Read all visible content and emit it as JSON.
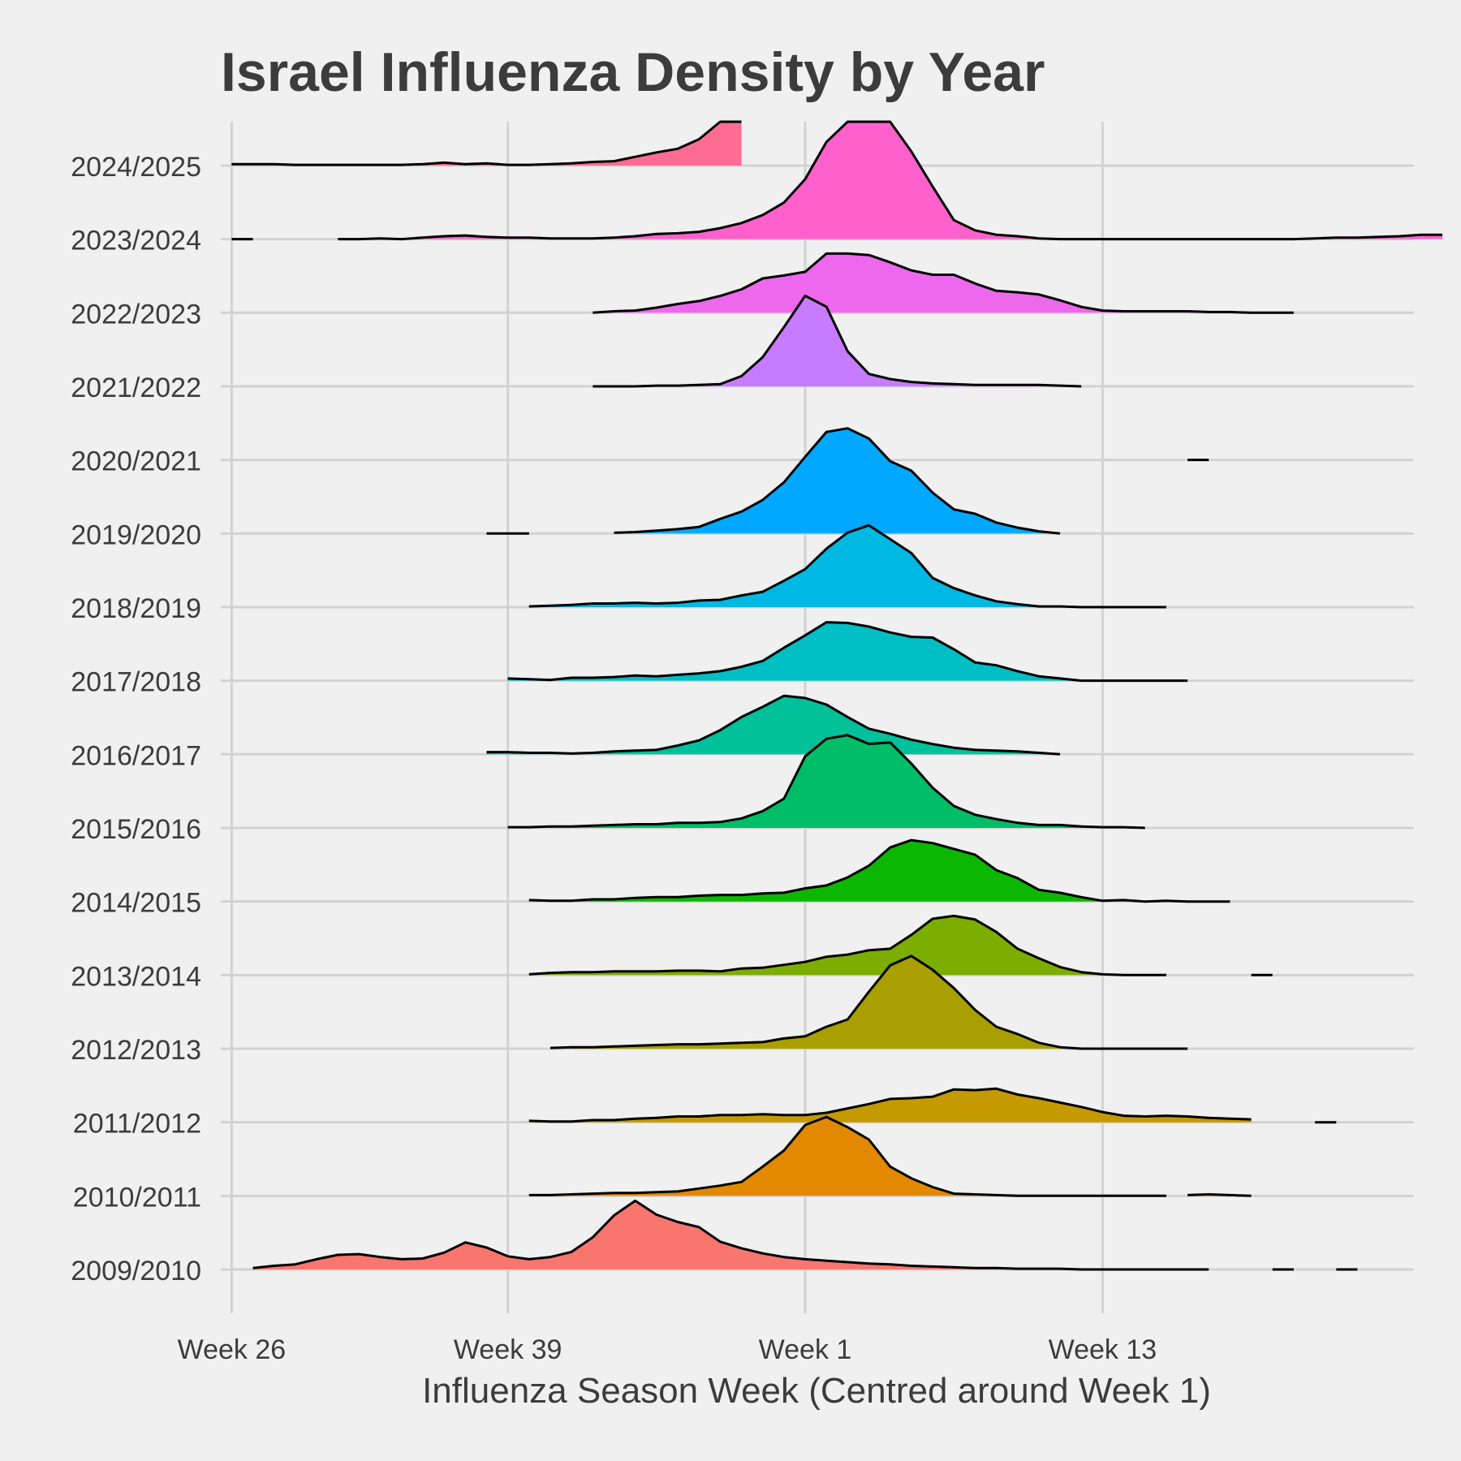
{
  "chart_data": {
    "type": "ridgeline",
    "title": "Israel Influenza Density by Year",
    "xlabel": "Influenza Season Week (Centred around Week 1)",
    "ylabel": "",
    "x_ticks": [
      {
        "value": -27,
        "label": "Week 26"
      },
      {
        "value": -14,
        "label": "Week 39"
      },
      {
        "value": 0,
        "label": "Week 1"
      },
      {
        "value": 14,
        "label": "Week 13"
      }
    ],
    "xlim": [
      -28.5,
      30.5
    ],
    "grid": true,
    "legend": "none",
    "y_categories": [
      "2009/2010",
      "2010/2011",
      "2011/2012",
      "2012/2013",
      "2013/2014",
      "2014/2015",
      "2015/2016",
      "2016/2017",
      "2017/2018",
      "2018/2019",
      "2019/2020",
      "2020/2021",
      "2021/2022",
      "2022/2023",
      "2023/2024",
      "2024/2025"
    ],
    "series": [
      {
        "name": "2009/2010",
        "color": "#F8766D",
        "segments": [
          {
            "start": -26,
            "values": [
              0.02,
              0.05,
              0.07,
              0.14,
              0.2,
              0.21,
              0.17,
              0.14,
              0.15,
              0.23,
              0.37,
              0.3,
              0.18,
              0.14,
              0.17,
              0.24,
              0.44,
              0.74,
              0.94,
              0.75,
              0.65,
              0.58,
              0.38,
              0.29,
              0.22,
              0.17,
              0.14,
              0.12,
              0.1,
              0.08,
              0.07,
              0.05,
              0.04,
              0.03,
              0.02,
              0.02,
              0.01,
              0.01,
              0.01,
              0.0,
              0.0,
              0.0,
              0.0,
              0.0,
              0.0,
              0.0
            ]
          },
          {
            "start": 22,
            "values": [
              0.0,
              0.0
            ]
          },
          {
            "start": 25,
            "values": [
              0.0,
              0.0
            ]
          }
        ]
      },
      {
        "name": "2010/2011",
        "color": "#E38900",
        "segments": [
          {
            "start": -13,
            "values": [
              0.01,
              0.01,
              0.02,
              0.03,
              0.04,
              0.04,
              0.05,
              0.06,
              0.1,
              0.14,
              0.19,
              0.4,
              0.62,
              0.97,
              1.08,
              0.94,
              0.77,
              0.4,
              0.24,
              0.12,
              0.03,
              0.02,
              0.01,
              0.0,
              0.0,
              0.0,
              0.0,
              0.0,
              0.0,
              0.0,
              0.0
            ]
          },
          {
            "start": 18,
            "values": [
              0.01,
              0.02,
              0.01,
              0.0
            ]
          }
        ]
      },
      {
        "name": "2011/2012",
        "color": "#C49A00",
        "segments": [
          {
            "start": -13,
            "values": [
              0.02,
              0.01,
              0.01,
              0.03,
              0.03,
              0.05,
              0.06,
              0.08,
              0.08,
              0.1,
              0.1,
              0.11,
              0.1,
              0.1,
              0.13,
              0.19,
              0.25,
              0.32,
              0.33,
              0.35,
              0.45,
              0.44,
              0.46,
              0.38,
              0.33,
              0.27,
              0.21,
              0.14,
              0.09,
              0.08,
              0.09,
              0.08,
              0.06,
              0.05,
              0.04
            ]
          },
          {
            "start": 24,
            "values": [
              0.0,
              0.0
            ]
          }
        ]
      },
      {
        "name": "2012/2013",
        "color": "#A9A000",
        "segments": [
          {
            "start": -12,
            "values": [
              0.01,
              0.02,
              0.02,
              0.03,
              0.04,
              0.05,
              0.06,
              0.06,
              0.07,
              0.08,
              0.09,
              0.14,
              0.17,
              0.3,
              0.4,
              0.78,
              1.14,
              1.27,
              1.08,
              0.83,
              0.53,
              0.3,
              0.2,
              0.08,
              0.02,
              0.0,
              0.0,
              0.0,
              0.0,
              0.0,
              0.0
            ]
          }
        ]
      },
      {
        "name": "2013/2014",
        "color": "#7CAE00",
        "segments": [
          {
            "start": -13,
            "values": [
              0.01,
              0.03,
              0.04,
              0.04,
              0.05,
              0.05,
              0.05,
              0.06,
              0.06,
              0.05,
              0.09,
              0.1,
              0.14,
              0.18,
              0.25,
              0.28,
              0.34,
              0.36,
              0.55,
              0.77,
              0.81,
              0.76,
              0.59,
              0.36,
              0.23,
              0.11,
              0.04,
              0.01,
              0.0,
              0.0,
              0.0
            ]
          },
          {
            "start": 21,
            "values": [
              0.0,
              0.0
            ]
          }
        ]
      },
      {
        "name": "2014/2015",
        "color": "#0CB702",
        "segments": [
          {
            "start": -13,
            "values": [
              0.02,
              0.01,
              0.01,
              0.03,
              0.03,
              0.05,
              0.06,
              0.06,
              0.08,
              0.09,
              0.09,
              0.11,
              0.12,
              0.18,
              0.22,
              0.33,
              0.49,
              0.74,
              0.84,
              0.8,
              0.72,
              0.64,
              0.43,
              0.32,
              0.16,
              0.12,
              0.06,
              0.01,
              0.02,
              0.0,
              0.01,
              0.0,
              0.0,
              0.0
            ]
          }
        ]
      },
      {
        "name": "2015/2016",
        "color": "#00BE67",
        "segments": [
          {
            "start": -14,
            "values": [
              0.01,
              0.01,
              0.02,
              0.02,
              0.03,
              0.04,
              0.05,
              0.05,
              0.07,
              0.07,
              0.08,
              0.13,
              0.23,
              0.4,
              0.98,
              1.22,
              1.27,
              1.15,
              1.17,
              0.88,
              0.55,
              0.3,
              0.18,
              0.12,
              0.07,
              0.04,
              0.04,
              0.02,
              0.01,
              0.01,
              0.0
            ]
          }
        ]
      },
      {
        "name": "2016/2017",
        "color": "#00C19A",
        "segments": [
          {
            "start": -15,
            "values": [
              0.03,
              0.03,
              0.02,
              0.02,
              0.01,
              0.02,
              0.04,
              0.05,
              0.06,
              0.12,
              0.19,
              0.33,
              0.51,
              0.65,
              0.8,
              0.77,
              0.68,
              0.51,
              0.35,
              0.28,
              0.2,
              0.14,
              0.09,
              0.06,
              0.05,
              0.04,
              0.02,
              0.0
            ]
          }
        ]
      },
      {
        "name": "2017/2018",
        "color": "#00BFC4",
        "segments": [
          {
            "start": -14,
            "values": [
              0.03,
              0.02,
              0.01,
              0.04,
              0.04,
              0.05,
              0.07,
              0.06,
              0.08,
              0.1,
              0.13,
              0.19,
              0.27,
              0.45,
              0.62,
              0.8,
              0.79,
              0.74,
              0.66,
              0.6,
              0.59,
              0.43,
              0.25,
              0.21,
              0.13,
              0.06,
              0.03,
              0.0,
              0.0,
              0.0,
              0.0,
              0.0,
              0.0
            ]
          }
        ]
      },
      {
        "name": "2018/2019",
        "color": "#00B9E3",
        "segments": [
          {
            "start": -13,
            "values": [
              0.01,
              0.02,
              0.03,
              0.05,
              0.05,
              0.06,
              0.05,
              0.06,
              0.09,
              0.1,
              0.16,
              0.21,
              0.36,
              0.52,
              0.8,
              1.02,
              1.12,
              0.93,
              0.74,
              0.4,
              0.26,
              0.16,
              0.08,
              0.04,
              0.01,
              0.01,
              0.0,
              0.0,
              0.0,
              0.0,
              0.0
            ]
          }
        ]
      },
      {
        "name": "2019/2020",
        "color": "#00A9FF",
        "segments": [
          {
            "start": -15,
            "values": [
              0.0,
              0.0,
              0.0
            ]
          },
          {
            "start": -9,
            "values": [
              0.01,
              0.02,
              0.04,
              0.06,
              0.09,
              0.2,
              0.3,
              0.46,
              0.7,
              1.05,
              1.39,
              1.44,
              1.3,
              0.99,
              0.86,
              0.56,
              0.33,
              0.27,
              0.15,
              0.08,
              0.03,
              0.0
            ]
          }
        ]
      },
      {
        "name": "2020/2021",
        "color": "#8494FF",
        "segments": [
          {
            "start": 18,
            "values": [
              0.0,
              0.0
            ]
          }
        ]
      },
      {
        "name": "2021/2022",
        "color": "#C77CFF",
        "segments": [
          {
            "start": -10,
            "values": [
              0.0,
              0.0,
              0.0,
              0.01,
              0.01,
              0.02,
              0.03,
              0.14,
              0.4,
              0.81,
              1.24,
              1.09,
              0.48,
              0.17,
              0.1,
              0.06,
              0.04,
              0.03,
              0.02,
              0.02,
              0.02,
              0.02,
              0.01,
              0.0
            ]
          }
        ]
      },
      {
        "name": "2022/2023",
        "color": "#ED68ED",
        "segments": [
          {
            "start": -10,
            "values": [
              0.0,
              0.02,
              0.03,
              0.07,
              0.12,
              0.16,
              0.23,
              0.32,
              0.47,
              0.51,
              0.56,
              0.81,
              0.81,
              0.79,
              0.69,
              0.58,
              0.52,
              0.52,
              0.4,
              0.3,
              0.28,
              0.25,
              0.17,
              0.08,
              0.03,
              0.02,
              0.02,
              0.02,
              0.02,
              0.01,
              0.01,
              0.0,
              0.0,
              0.0
            ]
          }
        ]
      },
      {
        "name": "2023/2024",
        "color": "#FF61CC",
        "segments": [
          {
            "start": -27,
            "values": [
              0.0,
              0.0
            ]
          },
          {
            "start": -22,
            "values": [
              0.0,
              0.0,
              0.01,
              0.0,
              0.02,
              0.04,
              0.05,
              0.03,
              0.02,
              0.02,
              0.01,
              0.01,
              0.01,
              0.02,
              0.04,
              0.07,
              0.08,
              0.1,
              0.15,
              0.22,
              0.33,
              0.5,
              0.82,
              1.33,
              1.99,
              2.42,
              2.09,
              1.2,
              0.72,
              0.26,
              0.12,
              0.06,
              0.04,
              0.01,
              0.0,
              0.0,
              0.0,
              0.0,
              0.0,
              0.0,
              0.0,
              0.0,
              0.0,
              0.0,
              0.0,
              0.0,
              0.01,
              0.02,
              0.02,
              0.03,
              0.04,
              0.06,
              0.06
            ]
          }
        ]
      },
      {
        "name": "2024/2025",
        "color": "#FF6C91",
        "segments": [
          {
            "start": -27,
            "values": [
              0.02,
              0.02,
              0.02,
              0.01,
              0.01,
              0.01,
              0.01,
              0.01,
              0.01,
              0.02,
              0.04,
              0.02,
              0.03,
              0.01,
              0.01,
              0.02,
              0.03,
              0.05,
              0.06,
              0.12,
              0.18,
              0.23,
              0.36,
              0.74,
              0.96
            ]
          }
        ]
      }
    ]
  }
}
